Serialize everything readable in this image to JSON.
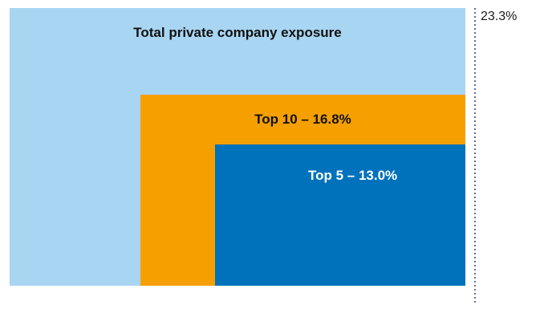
{
  "chart_data": {
    "type": "nested-area",
    "series": [
      {
        "name": "Total private company exposure",
        "label": "Total private company exposure",
        "value": 23.3,
        "color": "#a8d5f2",
        "label_color": "#111111"
      },
      {
        "name": "Top 10",
        "label": "Top 10 – 16.8%",
        "value": 16.8,
        "color": "#f5a000",
        "label_color": "#111111"
      },
      {
        "name": "Top 5",
        "label": "Top 5 – 13.0%",
        "value": 13.0,
        "color": "#0072bb",
        "label_color": "#ffffff"
      }
    ],
    "total_label": "23.3%",
    "divider_color": "#2b3a8a"
  }
}
